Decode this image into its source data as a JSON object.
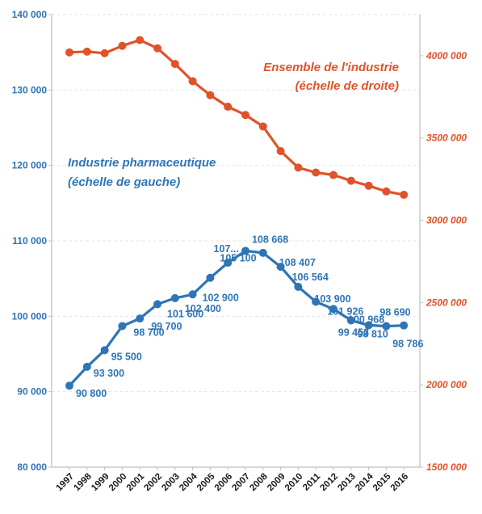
{
  "chart_data": {
    "type": "line",
    "x": [
      "1997",
      "1998",
      "1999",
      "2000",
      "2001",
      "2002",
      "2003",
      "2004",
      "2005",
      "2006",
      "2007",
      "2008",
      "2009",
      "2010",
      "2011",
      "2012",
      "2013",
      "2014",
      "2015",
      "2016"
    ],
    "series": [
      {
        "name": "Industrie pharmaceutique",
        "axis": "left",
        "color": "#2e75b6",
        "values": [
          90800,
          93300,
          95500,
          98700,
          99700,
          101600,
          102400,
          102900,
          105100,
          107100,
          108668,
          108407,
          106564,
          103900,
          101926,
          100968,
          99453,
          98810,
          98690,
          98786
        ]
      },
      {
        "name": "Ensemble de l'industrie",
        "axis": "right",
        "color": "#e0532a",
        "values": [
          4020000,
          4025000,
          4015000,
          4060000,
          4095000,
          4045000,
          3950000,
          3845000,
          3760000,
          3690000,
          3640000,
          3570000,
          3420000,
          3320000,
          3290000,
          3275000,
          3240000,
          3210000,
          3175000,
          3155000
        ]
      }
    ],
    "left_axis": {
      "ylim": [
        80000,
        140000
      ],
      "ticks": [
        80000,
        90000,
        100000,
        110000,
        120000,
        130000,
        140000
      ],
      "tick_labels": [
        "80 000",
        "90 000",
        "100 000",
        "110 000",
        "120 000",
        "130 000",
        "140 000"
      ],
      "color": "#2e75b6"
    },
    "right_axis": {
      "ylim": [
        1500000,
        4250000
      ],
      "ticks": [
        1500000,
        2000000,
        2500000,
        3000000,
        3500000,
        4000000
      ],
      "tick_labels": [
        "1500 000",
        "2000 000",
        "2500 000",
        "3000 000",
        "3500 000",
        "4000 000"
      ],
      "color": "#e0532a"
    },
    "data_labels": [
      {
        "index": 1,
        "text": "90 800"
      },
      {
        "index": 2,
        "text": "93 300"
      },
      {
        "index": 3,
        "text": "95 500"
      },
      {
        "index": 4,
        "text": "98 700"
      },
      {
        "index": 5,
        "text": "99 700"
      },
      {
        "index": 6,
        "text": "101 600"
      },
      {
        "index": 7,
        "text": "102 400"
      },
      {
        "index": 8,
        "text": "102 900"
      },
      {
        "index": 9,
        "text": "105 100"
      },
      {
        "index": 10,
        "text": "107..."
      },
      {
        "index": 11,
        "text": "108 668"
      },
      {
        "index": 12,
        "text": "108 407"
      },
      {
        "index": 13,
        "text": "106 564"
      },
      {
        "index": 14,
        "text": "103 900"
      },
      {
        "index": 15,
        "text": "101 926"
      },
      {
        "index": 16,
        "text": "100 968"
      },
      {
        "index": 17,
        "text": "99 453"
      },
      {
        "index": 18,
        "text": "98 810"
      },
      {
        "index": 19,
        "text": "98 690"
      },
      {
        "index": 20,
        "text": "98 786"
      }
    ],
    "annotations": {
      "pharma_line1": "Industrie pharmaceutique",
      "pharma_line2": "(échelle de gauche)",
      "industry_line1": "Ensemble de l'industrie",
      "industry_line2": "(échelle de droite)"
    },
    "grid": true
  }
}
